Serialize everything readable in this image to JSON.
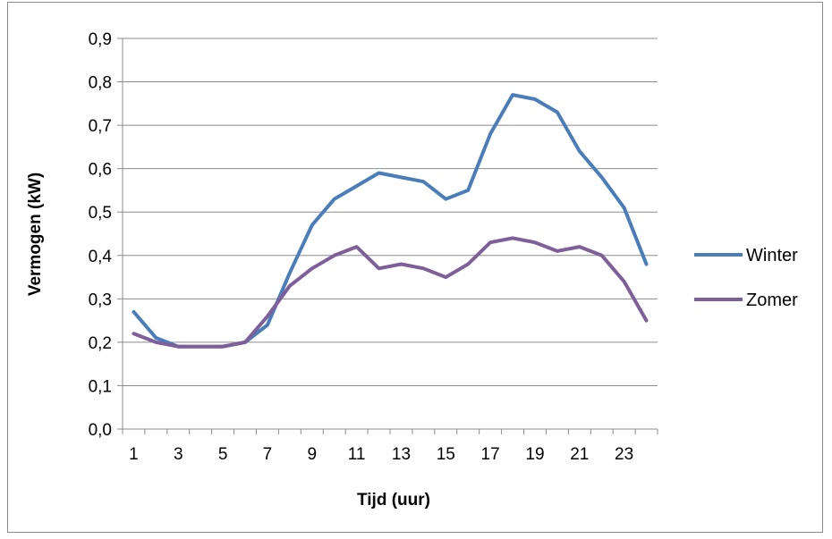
{
  "chart_data": {
    "type": "line",
    "title": "",
    "xlabel": "Tijd (uur)",
    "ylabel": "Vermogen (kW)",
    "x": [
      1,
      2,
      3,
      4,
      5,
      6,
      7,
      8,
      9,
      10,
      11,
      12,
      13,
      14,
      15,
      16,
      17,
      18,
      19,
      20,
      21,
      22,
      23,
      24
    ],
    "x_tick_labels": [
      "1",
      "3",
      "5",
      "7",
      "9",
      "11",
      "13",
      "15",
      "17",
      "19",
      "21",
      "23"
    ],
    "y_tick_labels": [
      "0,0",
      "0,1",
      "0,2",
      "0,3",
      "0,4",
      "0,5",
      "0,6",
      "0,7",
      "0,8",
      "0,9"
    ],
    "ylim": [
      0,
      0.9
    ],
    "grid": "horizontal",
    "legend_position": "right",
    "series": [
      {
        "name": "Winter",
        "color": "#4a7ebb",
        "values": [
          0.27,
          0.21,
          0.19,
          0.19,
          0.19,
          0.2,
          0.24,
          0.36,
          0.47,
          0.53,
          0.56,
          0.59,
          0.58,
          0.57,
          0.53,
          0.55,
          0.68,
          0.77,
          0.76,
          0.73,
          0.64,
          0.58,
          0.51,
          0.38
        ]
      },
      {
        "name": "Zomer",
        "color": "#7e5f99",
        "values": [
          0.22,
          0.2,
          0.19,
          0.19,
          0.19,
          0.2,
          0.26,
          0.33,
          0.37,
          0.4,
          0.42,
          0.37,
          0.38,
          0.37,
          0.35,
          0.38,
          0.43,
          0.44,
          0.43,
          0.41,
          0.42,
          0.4,
          0.34,
          0.25
        ]
      }
    ]
  }
}
